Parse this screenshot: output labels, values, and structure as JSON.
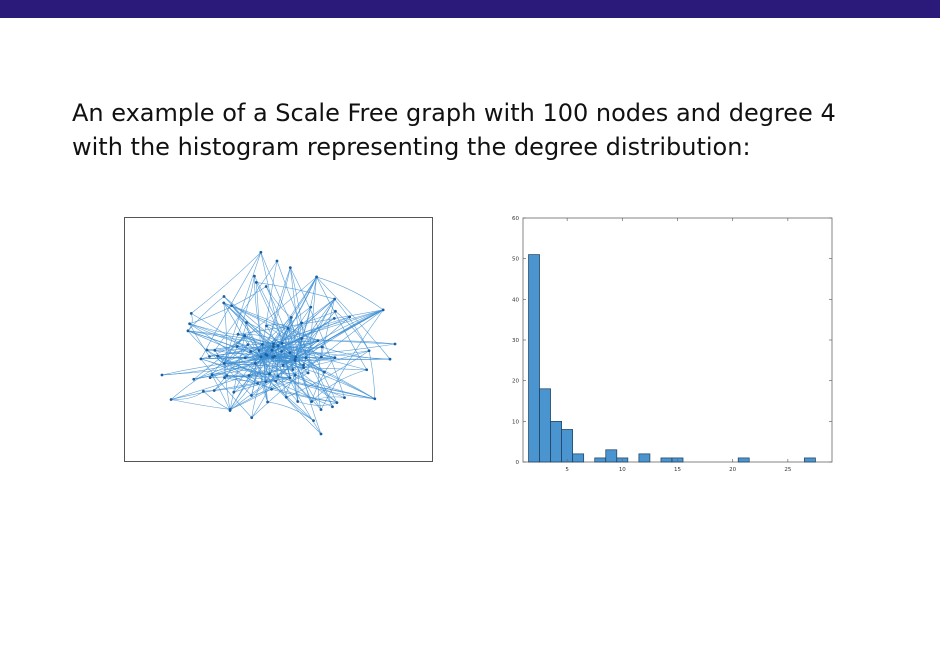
{
  "slide": {
    "line1": "An example of a Scale Free graph with 100 nodes and degree 4",
    "line2": "with the histogram representing the degree distribution:"
  },
  "network_graph": {
    "edge_color": "#3f8fd2",
    "node_color": "#1a5fa0"
  },
  "chart_data": {
    "type": "bar",
    "title": "",
    "xlabel": "",
    "ylabel": "",
    "bin_width": 1,
    "bins": [
      2,
      3,
      4,
      5,
      6,
      8,
      9,
      10,
      12,
      14,
      15,
      21,
      27
    ],
    "values": [
      51,
      18,
      10,
      8,
      2,
      1,
      3,
      1,
      2,
      1,
      1,
      1,
      1
    ],
    "xlim": [
      1,
      29
    ],
    "ylim": [
      0,
      60
    ],
    "xticks": [
      5,
      10,
      15,
      20,
      25
    ],
    "yticks": [
      0,
      10,
      20,
      30,
      40,
      50,
      60
    ],
    "bar_color": "#4a94cf",
    "grid": false,
    "legend": "none"
  }
}
